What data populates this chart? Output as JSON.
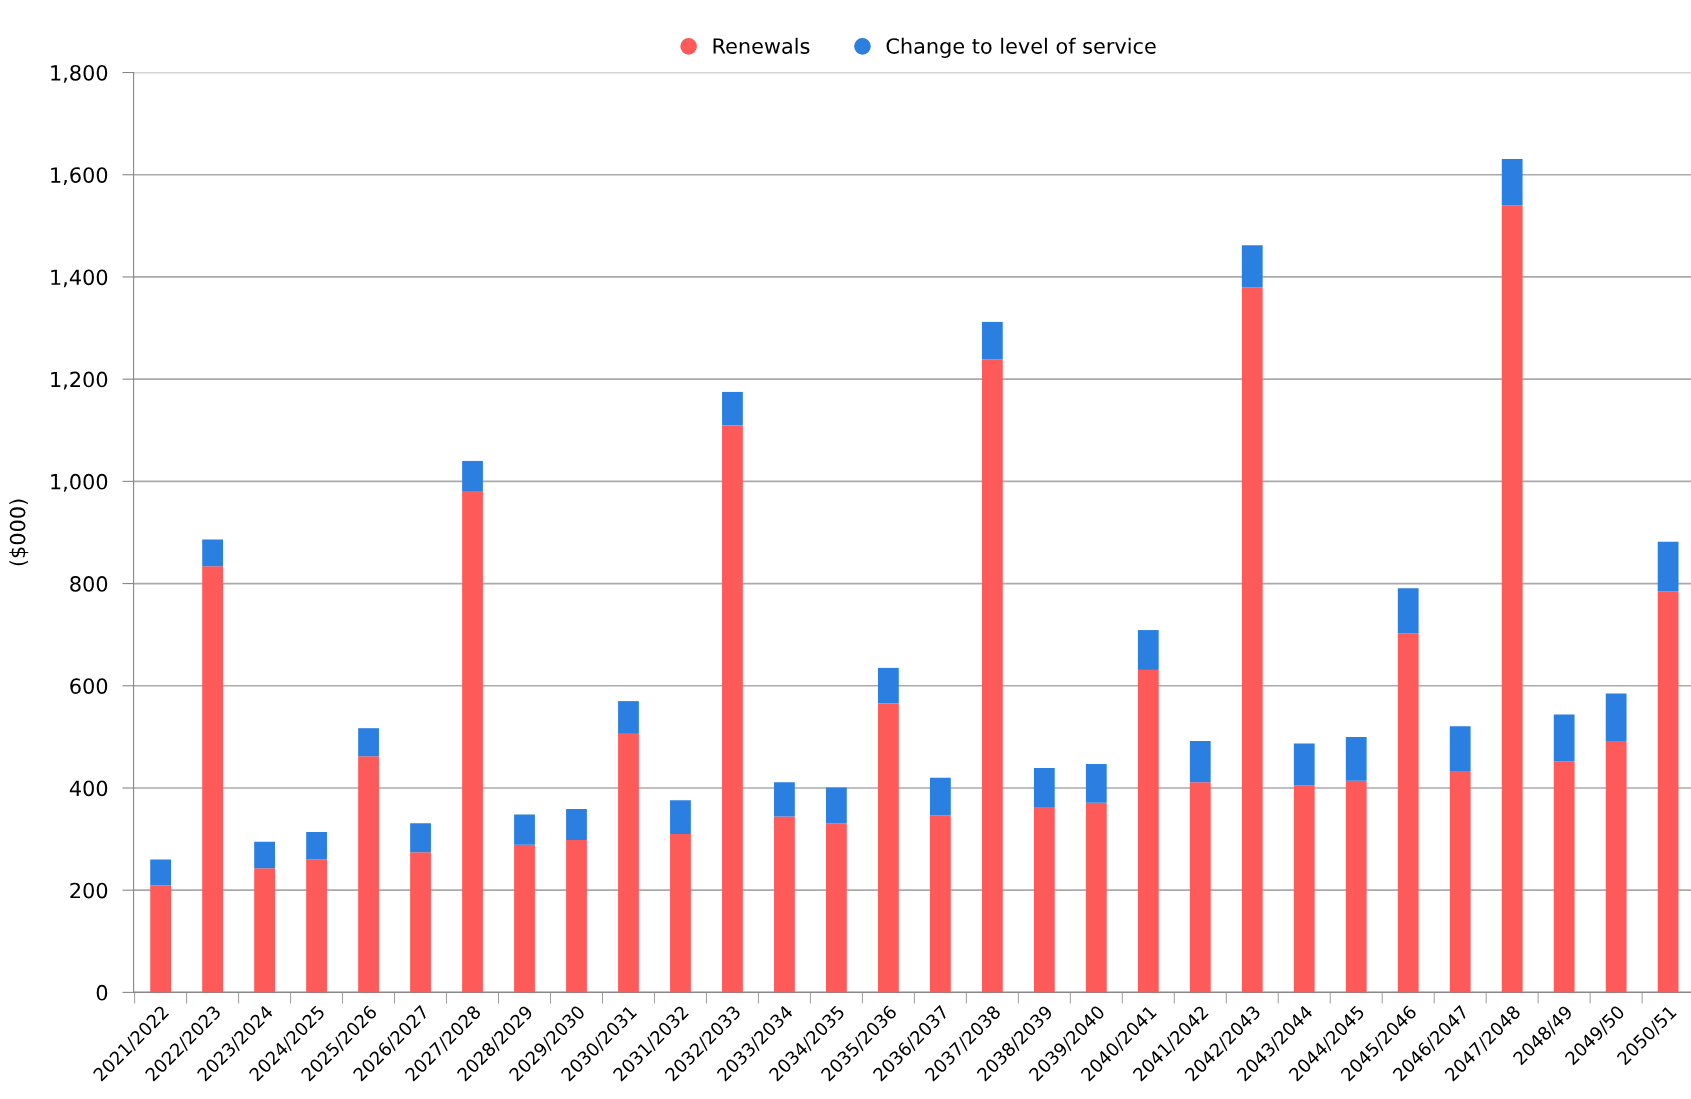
{
  "chart_data": {
    "type": "bar",
    "stacked": true,
    "ylabel": "($000)",
    "categories": [
      "2021/2022",
      "2022/2023",
      "2023/2024",
      "2024/2025",
      "2025/2026",
      "2026/2027",
      "2027/2028",
      "2028/2029",
      "2029/2030",
      "2030/2031",
      "2031/2032",
      "2032/2033",
      "2033/2034",
      "2034/2035",
      "2035/2036",
      "2036/2037",
      "2037/2038",
      "2038/2039",
      "2039/2040",
      "2040/2041",
      "2041/2042",
      "2042/2043",
      "2043/2044",
      "2044/2045",
      "2045/2046",
      "2046/2047",
      "2047/2048",
      "2048/49",
      "2049/50",
      "2050/51"
    ],
    "series": [
      {
        "name": "Renewals",
        "color": "#ff5a5a",
        "values": [
          209,
          834,
          243,
          260,
          462,
          274,
          981,
          289,
          298,
          506,
          310,
          1110,
          344,
          331,
          566,
          346,
          1239,
          363,
          371,
          631,
          411,
          1380,
          405,
          414,
          703,
          433,
          1540,
          452,
          492,
          785
        ]
      },
      {
        "name": "Change to level of service",
        "color": "#2b7fe0",
        "values": [
          51,
          52,
          52,
          54,
          55,
          57,
          59,
          59,
          61,
          64,
          66,
          65,
          67,
          70,
          69,
          74,
          73,
          76,
          76,
          78,
          81,
          82,
          82,
          86,
          88,
          88,
          91,
          92,
          93,
          97
        ]
      }
    ],
    "ylim": [
      0,
      1800
    ],
    "yticks": [
      {
        "value": 0,
        "label": "0"
      },
      {
        "value": 200,
        "label": "200"
      },
      {
        "value": 400,
        "label": "400"
      },
      {
        "value": 600,
        "label": "600"
      },
      {
        "value": 800,
        "label": "800"
      },
      {
        "value": 1000,
        "label": "1,000"
      },
      {
        "value": 1200,
        "label": "1,200"
      },
      {
        "value": 1400,
        "label": "1,400"
      },
      {
        "value": 1600,
        "label": "1,600"
      },
      {
        "value": 1800,
        "label": "1,800"
      }
    ],
    "grid": "y",
    "legend": "top",
    "marker": "circle"
  }
}
